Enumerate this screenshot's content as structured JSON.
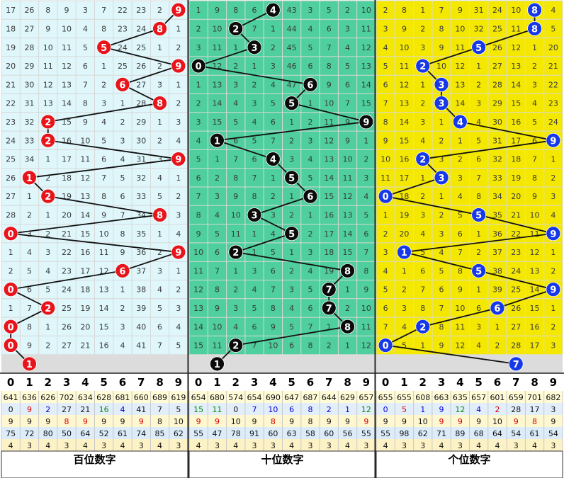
{
  "chart_data": {
    "type": "table",
    "sections": [
      {
        "title": "百位数字",
        "rows": [
          [
            17,
            26,
            8,
            9,
            3,
            7,
            22,
            23,
            2,
            9
          ],
          [
            18,
            27,
            9,
            10,
            4,
            8,
            23,
            24,
            8,
            1
          ],
          [
            19,
            28,
            10,
            11,
            5,
            5,
            24,
            25,
            1,
            2
          ],
          [
            20,
            29,
            11,
            12,
            6,
            1,
            25,
            26,
            2,
            9
          ],
          [
            21,
            30,
            12,
            13,
            7,
            2,
            6,
            27,
            3,
            1
          ],
          [
            22,
            31,
            13,
            14,
            8,
            3,
            1,
            28,
            8,
            2
          ],
          [
            23,
            32,
            2,
            15,
            9,
            4,
            2,
            29,
            1,
            3
          ],
          [
            24,
            33,
            2,
            16,
            10,
            5,
            3,
            30,
            2,
            4
          ],
          [
            25,
            34,
            1,
            17,
            11,
            6,
            4,
            31,
            3,
            9
          ],
          [
            26,
            1,
            2,
            18,
            12,
            7,
            5,
            32,
            4,
            1
          ],
          [
            27,
            1,
            2,
            19,
            13,
            8,
            6,
            33,
            5,
            2
          ],
          [
            28,
            2,
            1,
            20,
            14,
            9,
            7,
            34,
            8,
            3
          ],
          [
            0,
            3,
            2,
            21,
            15,
            10,
            8,
            35,
            1,
            4
          ],
          [
            1,
            4,
            3,
            22,
            16,
            11,
            9,
            36,
            2,
            9
          ],
          [
            2,
            5,
            4,
            23,
            17,
            12,
            6,
            37,
            3,
            1
          ],
          [
            0,
            6,
            5,
            24,
            18,
            13,
            1,
            38,
            4,
            2
          ],
          [
            1,
            7,
            2,
            25,
            19,
            14,
            2,
            39,
            5,
            3
          ],
          [
            0,
            8,
            1,
            26,
            20,
            15,
            3,
            40,
            6,
            4
          ],
          [
            0,
            9,
            2,
            27,
            21,
            16,
            4,
            41,
            7,
            5
          ]
        ],
        "winners": [
          9,
          8,
          5,
          9,
          6,
          8,
          2,
          2,
          9,
          1,
          2,
          8,
          0,
          9,
          6,
          0,
          2,
          0,
          0
        ],
        "next": 1,
        "stats": [
          [
            641,
            636,
            626,
            702,
            634,
            628,
            681,
            660,
            689,
            619
          ],
          [
            0,
            9,
            2,
            27,
            21,
            16,
            4,
            41,
            7,
            5
          ],
          [
            9,
            9,
            9,
            8,
            9,
            9,
            9,
            9,
            8,
            10
          ],
          [
            75,
            72,
            80,
            50,
            64,
            52,
            61,
            74,
            85,
            62
          ],
          [
            4,
            3,
            4,
            3,
            4,
            3,
            4,
            3,
            4,
            3
          ]
        ],
        "stat_colors": [
          [],
          [
            "",
            "#d40000",
            "#0000cc",
            "",
            "",
            "#008800",
            "#0000cc",
            "",
            "",
            ""
          ],
          [
            "",
            "",
            "",
            "#d40000",
            "#d40000",
            "",
            "",
            "#d40000",
            "",
            ""
          ],
          [],
          []
        ]
      },
      {
        "title": "十位数字",
        "rows": [
          [
            1,
            9,
            8,
            6,
            4,
            43,
            3,
            5,
            2,
            10
          ],
          [
            2,
            10,
            2,
            7,
            1,
            44,
            4,
            6,
            3,
            11
          ],
          [
            3,
            11,
            1,
            3,
            2,
            45,
            5,
            7,
            4,
            12
          ],
          [
            0,
            12,
            2,
            1,
            3,
            46,
            6,
            8,
            5,
            13
          ],
          [
            1,
            13,
            3,
            2,
            4,
            47,
            6,
            9,
            6,
            14
          ],
          [
            2,
            14,
            4,
            3,
            5,
            5,
            1,
            10,
            7,
            15
          ],
          [
            3,
            15,
            5,
            4,
            6,
            1,
            2,
            11,
            9,
            16
          ],
          [
            4,
            1,
            6,
            5,
            7,
            2,
            3,
            12,
            9,
            1
          ],
          [
            5,
            1,
            7,
            6,
            4,
            3,
            4,
            13,
            10,
            2
          ],
          [
            6,
            2,
            8,
            7,
            1,
            5,
            5,
            14,
            11,
            3
          ],
          [
            7,
            3,
            9,
            8,
            2,
            1,
            6,
            15,
            12,
            4
          ],
          [
            8,
            4,
            10,
            3,
            3,
            2,
            1,
            16,
            13,
            5
          ],
          [
            9,
            5,
            11,
            1,
            4,
            5,
            2,
            17,
            14,
            6
          ],
          [
            10,
            6,
            2,
            1,
            5,
            1,
            3,
            18,
            15,
            7
          ],
          [
            11,
            7,
            1,
            3,
            6,
            2,
            4,
            19,
            8,
            8
          ],
          [
            12,
            8,
            2,
            4,
            7,
            3,
            5,
            7,
            1,
            9
          ],
          [
            13,
            9,
            3,
            5,
            8,
            4,
            6,
            7,
            2,
            10
          ],
          [
            14,
            10,
            4,
            6,
            9,
            5,
            7,
            1,
            8,
            11
          ],
          [
            15,
            11,
            2,
            7,
            10,
            6,
            8,
            2,
            1,
            12
          ]
        ],
        "winners": [
          4,
          2,
          3,
          0,
          6,
          5,
          9,
          1,
          4,
          5,
          6,
          3,
          5,
          2,
          8,
          7,
          7,
          8,
          2
        ],
        "next": 1,
        "stats": [
          [
            654,
            680,
            574,
            654,
            690,
            647,
            687,
            644,
            629,
            657
          ],
          [
            15,
            11,
            0,
            7,
            10,
            6,
            8,
            2,
            1,
            12
          ],
          [
            9,
            9,
            10,
            9,
            8,
            9,
            8,
            9,
            9,
            9
          ],
          [
            55,
            47,
            78,
            91,
            60,
            63,
            58,
            60,
            56,
            55
          ],
          [
            4,
            3,
            4,
            3,
            3,
            4,
            3,
            3,
            4,
            3
          ]
        ],
        "stat_colors": [
          [],
          [
            "#008800",
            "#008800",
            "",
            "#0000cc",
            "#0000cc",
            "#0000cc",
            "#0000cc",
            "#0000cc",
            "#0000cc",
            "#008800"
          ],
          [
            "#d40000",
            "#d40000",
            "",
            "",
            "#d40000",
            "",
            "",
            "",
            "",
            "#d40000"
          ],
          [],
          []
        ]
      },
      {
        "title": "个位数字",
        "rows": [
          [
            2,
            8,
            1,
            7,
            9,
            31,
            24,
            10,
            8,
            4
          ],
          [
            3,
            9,
            2,
            8,
            10,
            32,
            25,
            11,
            8,
            5
          ],
          [
            4,
            10,
            3,
            9,
            11,
            5,
            26,
            12,
            1,
            20
          ],
          [
            5,
            11,
            2,
            10,
            12,
            1,
            27,
            13,
            2,
            21
          ],
          [
            6,
            12,
            1,
            3,
            13,
            2,
            28,
            14,
            3,
            22
          ],
          [
            7,
            13,
            2,
            3,
            14,
            3,
            29,
            15,
            4,
            23
          ],
          [
            8,
            14,
            3,
            1,
            4,
            4,
            30,
            16,
            5,
            24
          ],
          [
            9,
            15,
            4,
            2,
            1,
            5,
            31,
            17,
            6,
            9
          ],
          [
            10,
            16,
            2,
            3,
            2,
            6,
            32,
            18,
            7,
            1
          ],
          [
            11,
            17,
            1,
            3,
            3,
            7,
            33,
            19,
            8,
            2
          ],
          [
            0,
            18,
            2,
            1,
            4,
            8,
            34,
            20,
            9,
            3
          ],
          [
            1,
            19,
            3,
            2,
            5,
            5,
            35,
            21,
            10,
            4
          ],
          [
            2,
            20,
            4,
            3,
            6,
            1,
            36,
            22,
            11,
            9
          ],
          [
            3,
            1,
            5,
            4,
            7,
            2,
            37,
            23,
            12,
            1
          ],
          [
            4,
            1,
            6,
            5,
            8,
            5,
            38,
            24,
            13,
            2
          ],
          [
            5,
            2,
            7,
            6,
            9,
            1,
            39,
            25,
            14,
            9
          ],
          [
            6,
            3,
            8,
            7,
            10,
            6,
            26,
            26,
            15,
            1
          ],
          [
            7,
            4,
            2,
            8,
            11,
            3,
            1,
            27,
            16,
            2
          ],
          [
            0,
            5,
            1,
            9,
            12,
            4,
            2,
            28,
            17,
            3
          ]
        ],
        "winners": [
          8,
          8,
          5,
          2,
          3,
          3,
          4,
          9,
          2,
          3,
          0,
          5,
          9,
          1,
          5,
          9,
          6,
          2,
          0
        ],
        "next": 7,
        "stats": [
          [
            655,
            655,
            608,
            663,
            635,
            657,
            601,
            659,
            701,
            682
          ],
          [
            0,
            5,
            1,
            9,
            12,
            4,
            2,
            28,
            17,
            3
          ],
          [
            9,
            9,
            10,
            9,
            9,
            9,
            10,
            9,
            8,
            9
          ],
          [
            55,
            98,
            62,
            71,
            89,
            68,
            64,
            54,
            61,
            54
          ],
          [
            4,
            3,
            3,
            4,
            3,
            4,
            4,
            3,
            4,
            3
          ]
        ],
        "stat_colors": [
          [],
          [
            "#0000cc",
            "#d40000",
            "#0000cc",
            "#0000cc",
            "#008800",
            "#0000cc",
            "#d40000",
            "",
            "",
            ""
          ],
          [
            "",
            "",
            "",
            "#d40000",
            "#d40000",
            "",
            "",
            "#d40000",
            "#d40000",
            ""
          ],
          [],
          []
        ]
      }
    ],
    "header_digits": [
      "0",
      "1",
      "2",
      "3",
      "4",
      "5",
      "6",
      "7",
      "8",
      "9"
    ]
  },
  "colors": {
    "hundreds_bg": "#dff7fb",
    "tens_bg": "#4ecf9d",
    "units_bg": "#f5e800",
    "hundreds_ball": "#e8141b",
    "tens_ball": "#0b0b0b",
    "units_ball": "#1638e8",
    "stat_row_1": "#fffbd6",
    "stat_row_2": "#e3eefb",
    "stat_row_3": "#fff7cf",
    "stat_row_4": "#dcecfa",
    "stat_row_5": "#fcf2c6",
    "future_row": "#dcdcdc",
    "grid_line": "#d8d8d8"
  }
}
